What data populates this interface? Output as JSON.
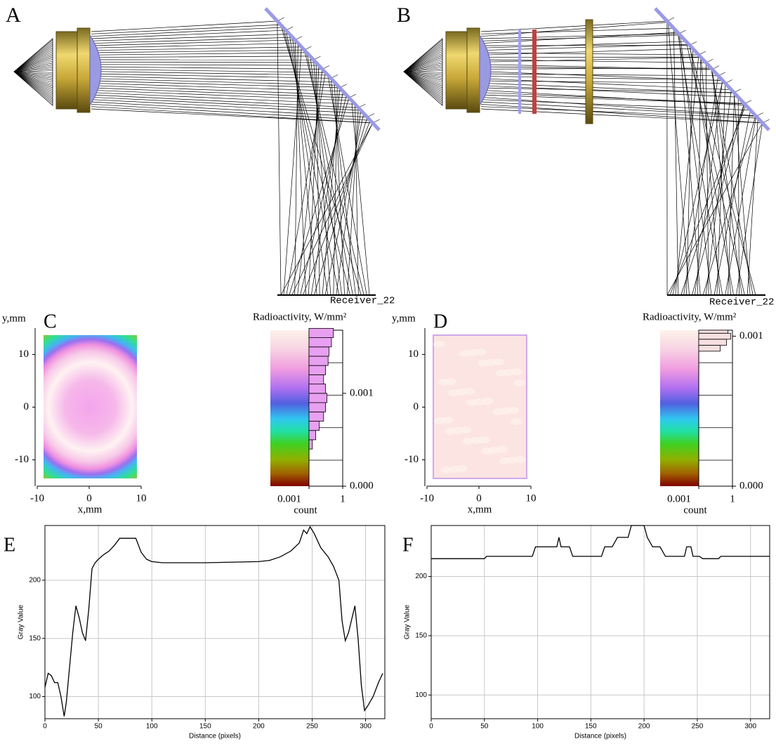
{
  "panels": {
    "A": {
      "label": "A",
      "receiver": "Receiver_22"
    },
    "B": {
      "label": "B",
      "receiver": "Receiver_22"
    },
    "C": {
      "label": "C",
      "xlabel": "x,mm",
      "ylabel": "y,mm",
      "xlim": [
        -10,
        10
      ],
      "ylim": [
        -15,
        15
      ],
      "xticks": [
        -10,
        0,
        10
      ],
      "yticks": [
        -10,
        0,
        10
      ],
      "colorbar": {
        "title": "Radioactivity, W/mm²",
        "clim": [
          0,
          0.00168
        ],
        "ticks": [
          {
            "value": 0,
            "label": "0.000"
          },
          {
            "value": 0.001,
            "label": "0.001"
          }
        ],
        "count_label": "count",
        "count_lim": [
          0.001,
          1
        ],
        "log_count": true,
        "count_ticks": [
          {
            "value": 0.001,
            "label": "0.001"
          },
          1
        ],
        "bins": [
          0.0004,
          0.0005,
          0.0006,
          0.0007,
          0.0008,
          0.0009,
          0.001,
          0.0011,
          0.0012,
          0.0013,
          0.0014,
          0.0015,
          0.0016,
          0.0017
        ],
        "counts": [
          0.002,
          0.004,
          0.008,
          0.02,
          0.03,
          0.04,
          0.03,
          0.02,
          0.03,
          0.05,
          0.06,
          0.1,
          0.15
        ]
      }
    },
    "D": {
      "label": "D",
      "xlabel": "x,mm",
      "ylabel": "y,mm",
      "xlim": [
        -10,
        10
      ],
      "ylim": [
        -15,
        15
      ],
      "xticks": [
        -10,
        0,
        10
      ],
      "yticks": [
        -10,
        0,
        10
      ],
      "colorbar": {
        "title": "Radioactivity, W/mm²",
        "clim": [
          0,
          0.00104
        ],
        "ticks": [
          {
            "value": 0,
            "label": "0.000"
          },
          {
            "value": 0.001,
            "label": "0.001"
          }
        ],
        "count_label": "count",
        "count_lim": [
          0.001,
          1
        ],
        "log_count": true,
        "count_ticks": [
          {
            "value": 0.001,
            "label": "0.001"
          },
          1
        ],
        "bins": [
          0.0009,
          0.00094,
          0.00098,
          0.00102,
          0.00104
        ],
        "counts": [
          0.08,
          0.3,
          0.7,
          0.4
        ]
      }
    }
  },
  "chart_data": [
    {
      "type": "line",
      "label": "E",
      "xlabel": "Distance (pixels)",
      "ylabel": "Gray Value",
      "color": "#000000",
      "grid": true,
      "xlim": [
        0,
        318
      ],
      "ylim": [
        81,
        247
      ],
      "xticks": [
        0,
        50,
        100,
        150,
        200,
        250,
        300
      ],
      "yticks": [
        100,
        150,
        200
      ],
      "x": [
        0,
        3,
        6,
        9,
        12,
        15,
        18,
        20,
        23,
        26,
        29,
        32,
        35,
        38,
        41,
        44,
        47,
        50,
        55,
        60,
        65,
        70,
        80,
        85,
        90,
        95,
        100,
        110,
        150,
        200,
        210,
        220,
        230,
        238,
        242,
        245,
        248,
        252,
        258,
        265,
        270,
        275,
        278,
        281,
        284,
        290,
        293,
        296,
        299,
        302,
        307,
        312,
        316
      ],
      "values": [
        108,
        120,
        118,
        112,
        112,
        100,
        83,
        95,
        125,
        155,
        178,
        168,
        155,
        148,
        175,
        210,
        215,
        218,
        222,
        225,
        230,
        236,
        236,
        236,
        224,
        218,
        216,
        215,
        215,
        216,
        217,
        220,
        225,
        232,
        243,
        240,
        246,
        240,
        228,
        220,
        212,
        200,
        165,
        148,
        155,
        178,
        150,
        110,
        88,
        92,
        100,
        112,
        120
      ]
    },
    {
      "type": "line",
      "label": "F",
      "xlabel": "Distance (pixels)",
      "ylabel": "Gray Value",
      "color": "#000000",
      "grid": true,
      "xlim": [
        0,
        318
      ],
      "ylim": [
        80,
        243
      ],
      "xticks": [
        0,
        50,
        100,
        150,
        200,
        250,
        300
      ],
      "yticks": [
        100,
        150,
        200
      ],
      "x": [
        0,
        50,
        52,
        95,
        98,
        118,
        120,
        122,
        130,
        133,
        150,
        160,
        163,
        170,
        175,
        185,
        188,
        200,
        203,
        208,
        215,
        220,
        238,
        240,
        244,
        246,
        252,
        255,
        270,
        272,
        318
      ],
      "values": [
        215,
        215,
        217,
        217,
        225,
        225,
        233,
        225,
        225,
        217,
        217,
        217,
        225,
        225,
        233,
        233,
        243,
        243,
        233,
        225,
        225,
        217,
        217,
        225,
        225,
        217,
        217,
        215,
        215,
        217,
        217
      ]
    }
  ]
}
